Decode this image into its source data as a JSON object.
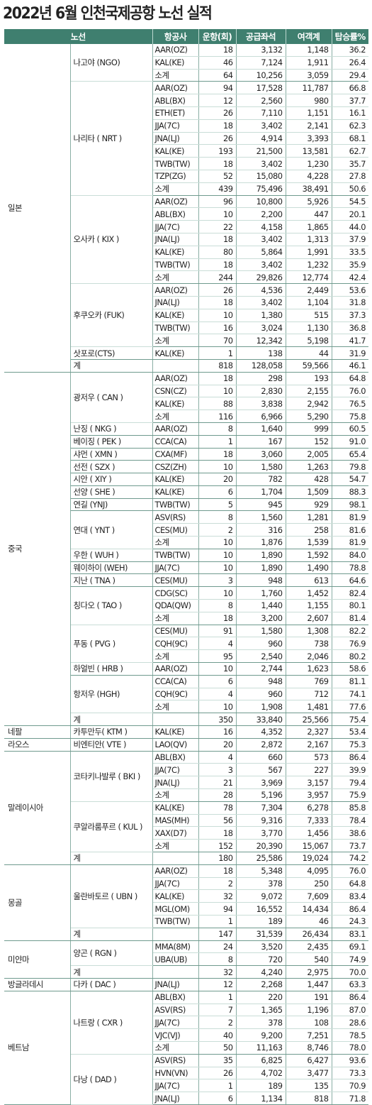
{
  "title": "2022년 6월 인천국제공항 노선 실적",
  "headers": [
    "노선",
    "항공사",
    "운항(회)",
    "공급좌석",
    "여객계",
    "탑승률%"
  ],
  "groups": [
    {
      "country": "일본",
      "routes": [
        {
          "name": "나고야 (NGO)",
          "rows": [
            [
              "AAR(OZ)",
              "18",
              "3,132",
              "1,148",
              "36.2"
            ],
            [
              "KAL(KE)",
              "46",
              "7,124",
              "1,911",
              "26.4"
            ],
            [
              "소계",
              "64",
              "10,256",
              "3,059",
              "29.4"
            ]
          ]
        },
        {
          "name": "나리타 ( NRT )",
          "rows": [
            [
              "AAR(OZ)",
              "94",
              "17,528",
              "11,787",
              "66.8"
            ],
            [
              "ABL(BX)",
              "12",
              "2,560",
              "980",
              "37.7"
            ],
            [
              "ETH(ET)",
              "26",
              "7,110",
              "1,151",
              "16.1"
            ],
            [
              "JJA(7C)",
              "18",
              "3,402",
              "2,141",
              "62.3"
            ],
            [
              "JNA(LJ)",
              "26",
              "4,914",
              "3,393",
              "68.1"
            ],
            [
              "KAL(KE)",
              "193",
              "21,500",
              "13,581",
              "62.7"
            ],
            [
              "TWB(TW)",
              "18",
              "3,402",
              "1,230",
              "35.7"
            ],
            [
              "TZP(ZG)",
              "52",
              "15,080",
              "4,228",
              "27.8"
            ],
            [
              "소계",
              "439",
              "75,496",
              "38,491",
              "50.6"
            ]
          ]
        },
        {
          "name": "오사카 ( KIX )",
          "rows": [
            [
              "AAR(OZ)",
              "96",
              "10,800",
              "5,926",
              "54.5"
            ],
            [
              "ABL(BX)",
              "10",
              "2,200",
              "447",
              "20.1"
            ],
            [
              "JJA(7C)",
              "22",
              "4,158",
              "1,865",
              "44.0"
            ],
            [
              "JNA(LJ)",
              "18",
              "3,402",
              "1,313",
              "37.9"
            ],
            [
              "KAL(KE)",
              "80",
              "5,864",
              "1,991",
              "33.5"
            ],
            [
              "TWB(TW)",
              "18",
              "3,402",
              "1,232",
              "35.9"
            ],
            [
              "소계",
              "244",
              "29,826",
              "12,774",
              "42.4"
            ]
          ]
        },
        {
          "name": "후쿠오카 (FUK)",
          "rows": [
            [
              "AAR(OZ)",
              "26",
              "4,536",
              "2,449",
              "53.6"
            ],
            [
              "JNA(LJ)",
              "18",
              "3,402",
              "1,104",
              "31.8"
            ],
            [
              "KAL(KE)",
              "10",
              "1,380",
              "515",
              "37.3"
            ],
            [
              "TWB(TW)",
              "16",
              "3,024",
              "1,130",
              "36.8"
            ],
            [
              "소계",
              "70",
              "12,342",
              "5,198",
              "41.7"
            ]
          ]
        },
        {
          "name": "삿포로(CTS)",
          "rows": [
            [
              "KAL(KE)",
              "1",
              "138",
              "44",
              "31.9"
            ]
          ]
        },
        {
          "name": "계",
          "rows": [
            [
              "",
              "818",
              "128,058",
              "59,566",
              "46.1"
            ]
          ]
        }
      ]
    },
    {
      "country": "중국",
      "routes": [
        {
          "name": "광저우 ( CAN )",
          "rows": [
            [
              "AAR(OZ)",
              "18",
              "298",
              "193",
              "64.8"
            ],
            [
              "CSN(CZ)",
              "10",
              "2,830",
              "2,155",
              "76.0"
            ],
            [
              "KAL(KE)",
              "88",
              "3,838",
              "2,942",
              "76.5"
            ],
            [
              "소계",
              "116",
              "6,966",
              "5,290",
              "75.8"
            ]
          ]
        },
        {
          "name": "난징 ( NKG )",
          "rows": [
            [
              "AAR(OZ)",
              "8",
              "1,640",
              "999",
              "60.5"
            ]
          ]
        },
        {
          "name": "베이징 ( PEK )",
          "rows": [
            [
              "CCA(CA)",
              "1",
              "167",
              "152",
              "91.0"
            ]
          ]
        },
        {
          "name": "샤먼 ( XMN )",
          "rows": [
            [
              "CXA(MF)",
              "18",
              "3,060",
              "2,005",
              "65.4"
            ]
          ]
        },
        {
          "name": "선전 ( SZX )",
          "rows": [
            [
              "CSZ(ZH)",
              "10",
              "1,580",
              "1,263",
              "79.8"
            ]
          ]
        },
        {
          "name": "시안 ( XIY )",
          "rows": [
            [
              "KAL(KE)",
              "20",
              "782",
              "428",
              "54.7"
            ]
          ]
        },
        {
          "name": "선양 ( SHE )",
          "rows": [
            [
              "KAL(KE)",
              "6",
              "1,704",
              "1,509",
              "88.3"
            ]
          ]
        },
        {
          "name": "연길 (YNJ)",
          "rows": [
            [
              "TWB(TW)",
              "5",
              "945",
              "929",
              "98.1"
            ]
          ]
        },
        {
          "name": "연대 ( YNT )",
          "rows": [
            [
              "ASV(RS)",
              "8",
              "1,560",
              "1,281",
              "81.9"
            ],
            [
              "CES(MU)",
              "2",
              "316",
              "258",
              "81.6"
            ],
            [
              "소계",
              "10",
              "1,876",
              "1,539",
              "81.9"
            ]
          ]
        },
        {
          "name": "우한 ( WUH )",
          "rows": [
            [
              "TWB(TW)",
              "10",
              "1,890",
              "1,592",
              "84.0"
            ]
          ]
        },
        {
          "name": "웨이하이 (WEH)",
          "rows": [
            [
              "JJA(7C)",
              "10",
              "1,890",
              "1,490",
              "78.8"
            ]
          ]
        },
        {
          "name": "지난 ( TNA )",
          "rows": [
            [
              "CES(MU)",
              "3",
              "948",
              "613",
              "64.6"
            ]
          ]
        },
        {
          "name": "칭다오 ( TAO )",
          "rows": [
            [
              "CDG(SC)",
              "10",
              "1,760",
              "1,452",
              "82.4"
            ],
            [
              "QDA(QW)",
              "8",
              "1,440",
              "1,155",
              "80.1"
            ],
            [
              "소계",
              "18",
              "3,200",
              "2,607",
              "81.4"
            ]
          ]
        },
        {
          "name": "푸동 ( PVG )",
          "rows": [
            [
              "CES(MU)",
              "91",
              "1,580",
              "1,308",
              "82.2"
            ],
            [
              "CQH(9C)",
              "4",
              "960",
              "738",
              "76.9"
            ],
            [
              "소계",
              "95",
              "2,540",
              "2,046",
              "80.2"
            ]
          ]
        },
        {
          "name": "하얼빈 ( HRB )",
          "rows": [
            [
              "AAR(OZ)",
              "10",
              "2,744",
              "1,623",
              "58.6"
            ]
          ]
        },
        {
          "name": "항저우 (HGH)",
          "rows": [
            [
              "CCA(CA)",
              "6",
              "948",
              "769",
              "81.1"
            ],
            [
              "CQH(9C)",
              "4",
              "960",
              "712",
              "74.1"
            ],
            [
              "소계",
              "10",
              "1,908",
              "1,481",
              "77.6"
            ]
          ]
        },
        {
          "name": "계",
          "rows": [
            [
              "",
              "350",
              "33,840",
              "25,566",
              "75.4"
            ]
          ]
        }
      ]
    },
    {
      "country": "네팔",
      "routes": [
        {
          "name": "카투만두( KTM )",
          "rows": [
            [
              "KAL(KE)",
              "16",
              "4,352",
              "2,327",
              "53.4"
            ]
          ]
        }
      ]
    },
    {
      "country": "라오스",
      "routes": [
        {
          "name": "비엔티안( VTE )",
          "rows": [
            [
              "LAO(QV)",
              "20",
              "2,872",
              "2,167",
              "75.3"
            ]
          ]
        }
      ]
    },
    {
      "country": "말레이시아",
      "routes": [
        {
          "name": "코타키나발루 ( BKI )",
          "rows": [
            [
              "ABL(BX)",
              "4",
              "660",
              "573",
              "86.4"
            ],
            [
              "JJA(7C)",
              "3",
              "567",
              "227",
              "39.9"
            ],
            [
              "JNA(LJ)",
              "21",
              "3,969",
              "3,157",
              "79.4"
            ],
            [
              "소계",
              "28",
              "5,196",
              "3,957",
              "75.9"
            ]
          ]
        },
        {
          "name": "쿠알라룸푸르 ( KUL )",
          "rows": [
            [
              "KAL(KE)",
              "78",
              "7,304",
              "6,278",
              "85.8"
            ],
            [
              "MAS(MH)",
              "56",
              "9,316",
              "7,333",
              "78.4"
            ],
            [
              "XAX(D7)",
              "18",
              "3,770",
              "1,456",
              "38.6"
            ],
            [
              "소계",
              "152",
              "20,390",
              "15,067",
              "73.7"
            ]
          ]
        },
        {
          "name": "계",
          "rows": [
            [
              "",
              "180",
              "25,586",
              "19,024",
              "74.2"
            ]
          ]
        }
      ]
    },
    {
      "country": "몽골",
      "routes": [
        {
          "name": "울란바토르 ( UBN )",
          "rows": [
            [
              "AAR(OZ)",
              "18",
              "5,348",
              "4,095",
              "76.0"
            ],
            [
              "JJA(7C)",
              "2",
              "378",
              "250",
              "64.8"
            ],
            [
              "KAL(KE)",
              "32",
              "9,072",
              "7,609",
              "83.4"
            ],
            [
              "MGL(OM)",
              "94",
              "16,552",
              "14,434",
              "86.4"
            ],
            [
              "TWB(TW)",
              "1",
              "189",
              "46",
              "24.3"
            ]
          ]
        },
        {
          "name": "계",
          "rows": [
            [
              "",
              "147",
              "31,539",
              "26,434",
              "83.1"
            ]
          ]
        }
      ]
    },
    {
      "country": "미얀마",
      "routes": [
        {
          "name": "양곤 ( RGN )",
          "rows": [
            [
              "MMA(8M)",
              "24",
              "3,520",
              "2,435",
              "69.1"
            ],
            [
              "UBA(UB)",
              "8",
              "720",
              "540",
              "74.9"
            ]
          ]
        },
        {
          "name": "계",
          "rows": [
            [
              "",
              "32",
              "4,240",
              "2,975",
              "70.0"
            ]
          ]
        }
      ]
    },
    {
      "country": "방글라데시",
      "routes": [
        {
          "name": "다카 ( DAC )",
          "rows": [
            [
              "JNA(LJ)",
              "12",
              "2,268",
              "1,447",
              "63.3"
            ]
          ]
        }
      ]
    },
    {
      "country": "베트남",
      "routes": [
        {
          "name": "나트랑 ( CXR )",
          "rows": [
            [
              "ABL(BX)",
              "1",
              "220",
              "191",
              "86.4"
            ],
            [
              "ASV(RS)",
              "7",
              "1,365",
              "1,196",
              "87.0"
            ],
            [
              "JJA(7C)",
              "2",
              "378",
              "108",
              "28.6"
            ],
            [
              "VJC(VJ)",
              "40",
              "9,200",
              "7,251",
              "78.5"
            ],
            [
              "소계",
              "50",
              "11,163",
              "8,746",
              "78.0"
            ]
          ]
        },
        {
          "name": "다낭 ( DAD )",
          "rows": [
            [
              "ASV(RS)",
              "35",
              "6,825",
              "6,427",
              "93.6"
            ],
            [
              "HVN(VN)",
              "26",
              "4,702",
              "3,477",
              "73.3"
            ],
            [
              "JJA(7C)",
              "1",
              "189",
              "135",
              "70.9"
            ],
            [
              "JNA(LJ)",
              "6",
              "1,134",
              "818",
              "71.8"
            ]
          ]
        }
      ]
    }
  ]
}
